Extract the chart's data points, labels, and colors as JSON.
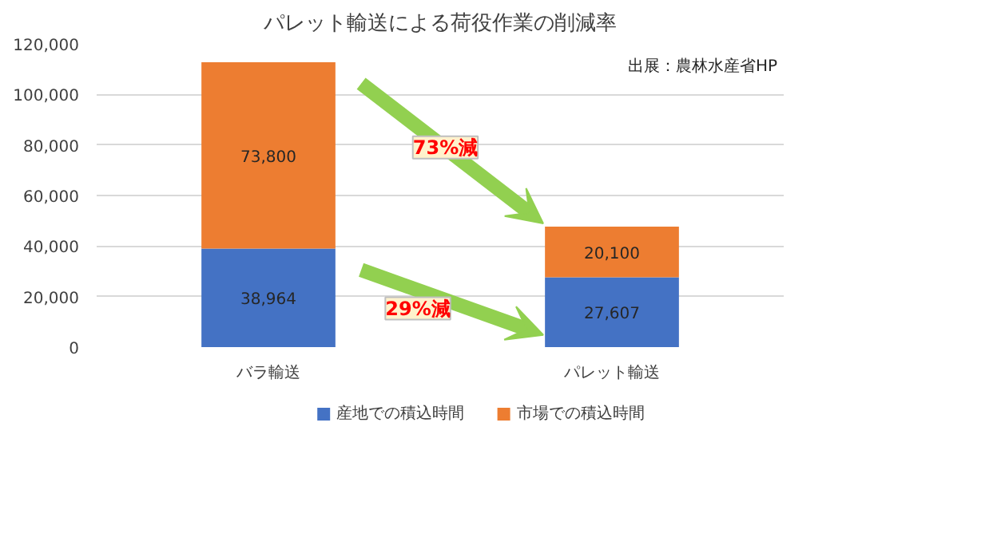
{
  "chart_data": {
    "type": "bar",
    "title": "パレット輸送による荷役作業の削減率",
    "categories": [
      "バラ輸送",
      "パレット輸送"
    ],
    "stacked": true,
    "series": [
      {
        "name": "産地での積込時間",
        "color": "#4472c4",
        "values": [
          38964,
          27607
        ],
        "value_labels": [
          "38,964",
          "27,607"
        ]
      },
      {
        "name": "市場での積込時間",
        "color": "#ed7d31",
        "values": [
          73800,
          20100
        ],
        "value_labels": [
          "73,800",
          "20,100"
        ]
      }
    ],
    "ylim": [
      0,
      120000
    ],
    "yticks": [
      {
        "value": 0,
        "label": "0"
      },
      {
        "value": 20000,
        "label": "20,000"
      },
      {
        "value": 40000,
        "label": "40,000"
      },
      {
        "value": 60000,
        "label": "60,000"
      },
      {
        "value": 80000,
        "label": "80,000"
      },
      {
        "value": 100000,
        "label": "100,000"
      },
      {
        "value": 120000,
        "label": "120,000"
      }
    ],
    "grid": "y",
    "legend": "bottom",
    "data_labels": true,
    "annotations": [
      "出展：農林水産省HP",
      "73%減",
      "29%減"
    ]
  }
}
